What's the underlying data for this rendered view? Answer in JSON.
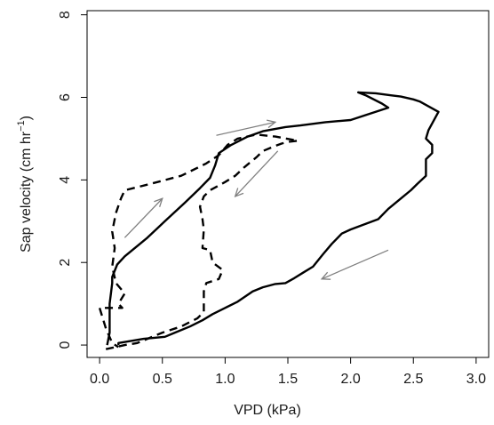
{
  "chart_data": {
    "type": "line",
    "title": "",
    "xlabel": "VPD (kPa)",
    "ylabel_main": "Sap velocity  (cm hr",
    "ylabel_sup": "−1",
    "ylabel_tail": ")",
    "xlim": [
      -0.1,
      3.1
    ],
    "ylim": [
      -0.3,
      8.1
    ],
    "x_ticks": [
      0.0,
      0.5,
      1.0,
      1.5,
      2.0,
      2.5,
      3.0
    ],
    "x_tick_labels": [
      "0.0",
      "0.5",
      "1.0",
      "1.5",
      "2.0",
      "2.5",
      "3.0"
    ],
    "y_ticks": [
      0,
      2,
      4,
      6,
      8
    ],
    "y_tick_labels": [
      "0",
      "2",
      "4",
      "6",
      "8"
    ],
    "grid": false,
    "legend": "none",
    "series": [
      {
        "style": "solid",
        "color": "#000000",
        "points": [
          [
            0.15,
            0.0
          ],
          [
            0.15,
            0.05
          ],
          [
            0.35,
            0.15
          ],
          [
            0.52,
            0.2
          ],
          [
            0.6,
            0.3
          ],
          [
            0.72,
            0.45
          ],
          [
            0.82,
            0.6
          ],
          [
            0.9,
            0.75
          ],
          [
            1.0,
            0.9
          ],
          [
            1.1,
            1.05
          ],
          [
            1.22,
            1.3
          ],
          [
            1.3,
            1.4
          ],
          [
            1.4,
            1.48
          ],
          [
            1.48,
            1.5
          ],
          [
            1.55,
            1.62
          ],
          [
            1.62,
            1.75
          ],
          [
            1.7,
            1.9
          ],
          [
            1.78,
            2.2
          ],
          [
            1.85,
            2.45
          ],
          [
            1.93,
            2.7
          ],
          [
            2.0,
            2.8
          ],
          [
            2.22,
            3.05
          ],
          [
            2.3,
            3.3
          ],
          [
            2.4,
            3.55
          ],
          [
            2.48,
            3.75
          ],
          [
            2.53,
            3.9
          ],
          [
            2.6,
            4.1
          ],
          [
            2.6,
            4.5
          ],
          [
            2.65,
            4.65
          ],
          [
            2.65,
            4.85
          ],
          [
            2.6,
            5.0
          ],
          [
            2.62,
            5.2
          ],
          [
            2.7,
            5.65
          ],
          [
            2.55,
            5.9
          ],
          [
            2.5,
            5.95
          ],
          [
            2.4,
            6.02
          ],
          [
            2.32,
            6.05
          ],
          [
            2.2,
            6.1
          ],
          [
            2.06,
            6.12
          ],
          [
            2.12,
            6.05
          ],
          [
            2.25,
            5.85
          ],
          [
            2.3,
            5.75
          ],
          [
            2.0,
            5.45
          ],
          [
            1.8,
            5.4
          ],
          [
            1.6,
            5.32
          ],
          [
            1.48,
            5.28
          ],
          [
            1.3,
            5.18
          ],
          [
            1.18,
            5.05
          ],
          [
            1.05,
            4.85
          ],
          [
            0.95,
            4.65
          ],
          [
            0.92,
            4.35
          ],
          [
            0.88,
            4.05
          ],
          [
            0.8,
            3.8
          ],
          [
            0.68,
            3.45
          ],
          [
            0.52,
            3.0
          ],
          [
            0.38,
            2.6
          ],
          [
            0.2,
            2.15
          ],
          [
            0.14,
            1.95
          ],
          [
            0.1,
            1.65
          ],
          [
            0.1,
            1.5
          ],
          [
            0.08,
            1.0
          ],
          [
            0.08,
            0.6
          ],
          [
            0.08,
            0.3
          ],
          [
            0.06,
            0.0
          ]
        ]
      },
      {
        "style": "dashed",
        "color": "#000000",
        "points": [
          [
            0.05,
            -0.1
          ],
          [
            0.2,
            0.0
          ],
          [
            0.3,
            0.05
          ],
          [
            0.5,
            0.3
          ],
          [
            0.65,
            0.45
          ],
          [
            0.78,
            0.65
          ],
          [
            0.83,
            0.8
          ],
          [
            0.83,
            1.3
          ],
          [
            0.85,
            1.5
          ],
          [
            0.95,
            1.6
          ],
          [
            0.98,
            1.82
          ],
          [
            0.9,
            2.0
          ],
          [
            0.88,
            2.3
          ],
          [
            0.82,
            2.35
          ],
          [
            0.83,
            2.8
          ],
          [
            0.82,
            3.05
          ],
          [
            0.8,
            3.35
          ],
          [
            0.83,
            3.6
          ],
          [
            0.88,
            3.75
          ],
          [
            1.0,
            3.95
          ],
          [
            1.08,
            4.1
          ],
          [
            1.15,
            4.3
          ],
          [
            1.25,
            4.55
          ],
          [
            1.3,
            4.7
          ],
          [
            1.38,
            4.8
          ],
          [
            1.45,
            4.88
          ],
          [
            1.5,
            4.92
          ],
          [
            1.58,
            4.95
          ],
          [
            1.4,
            5.05
          ],
          [
            1.25,
            5.1
          ],
          [
            1.1,
            5.0
          ],
          [
            1.02,
            4.85
          ],
          [
            0.95,
            4.6
          ],
          [
            0.85,
            4.4
          ],
          [
            0.65,
            4.1
          ],
          [
            0.4,
            3.9
          ],
          [
            0.2,
            3.75
          ],
          [
            0.17,
            3.55
          ],
          [
            0.13,
            3.2
          ],
          [
            0.1,
            2.75
          ],
          [
            0.12,
            2.35
          ],
          [
            0.1,
            1.9
          ],
          [
            0.13,
            1.5
          ],
          [
            0.2,
            1.25
          ],
          [
            0.15,
            1.0
          ],
          [
            0.18,
            0.9
          ],
          [
            0.0,
            0.9
          ],
          [
            0.05,
            0.4
          ],
          [
            0.1,
            0.05
          ],
          [
            0.15,
            -0.05
          ]
        ]
      }
    ],
    "arrows": [
      {
        "color": "#808080",
        "from": [
          0.2,
          2.6
        ],
        "to": [
          0.5,
          3.55
        ]
      },
      {
        "color": "#808080",
        "from": [
          0.93,
          5.08
        ],
        "to": [
          1.4,
          5.4
        ]
      },
      {
        "color": "#808080",
        "from": [
          1.42,
          4.7
        ],
        "to": [
          1.08,
          3.6
        ]
      },
      {
        "color": "#808080",
        "from": [
          2.3,
          2.3
        ],
        "to": [
          1.77,
          1.6
        ]
      }
    ]
  }
}
